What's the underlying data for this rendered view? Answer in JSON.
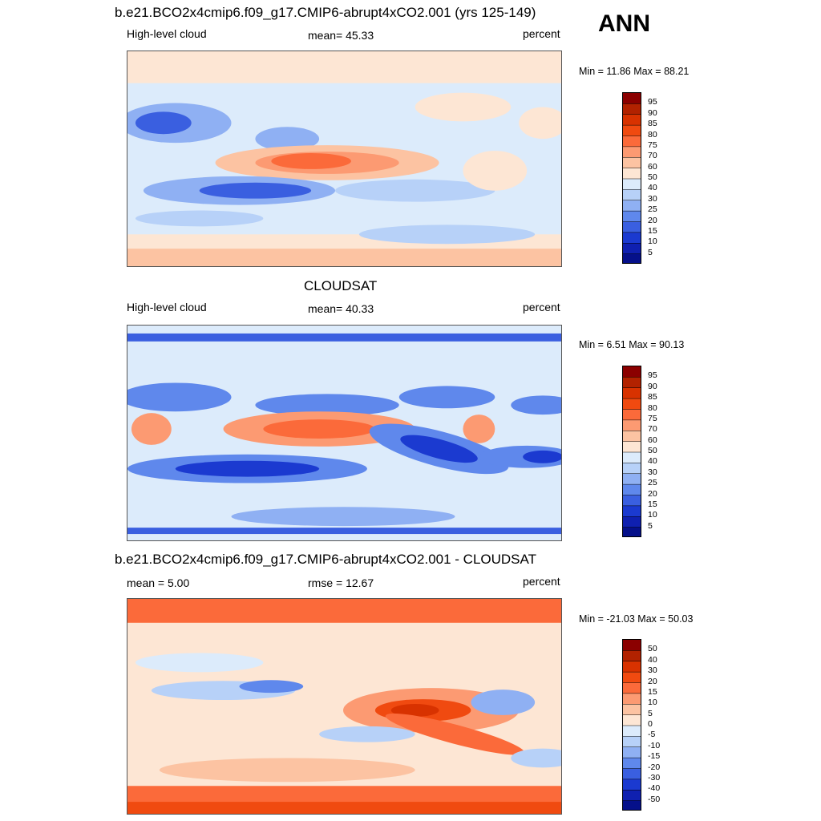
{
  "figure": {
    "season": "ANN"
  },
  "panels": [
    {
      "title": "b.e21.BCO2x4cmip6.f09_g17.CMIP6-abrupt4xCO2.001 (yrs 125-149)",
      "left_label": "High-level cloud",
      "center_label": "mean=  45.33",
      "right_label": "percent",
      "minmax": "Min =  11.86 Max =  88.21",
      "levels": [
        "95",
        "90",
        "85",
        "80",
        "75",
        "70",
        "60",
        "50",
        "40",
        "30",
        "25",
        "20",
        "15",
        "10",
        "5"
      ],
      "colors": [
        "#8b0000",
        "#b22200",
        "#d83200",
        "#f04a10",
        "#fb6a3a",
        "#fc9a72",
        "#fcc3a2",
        "#fde6d4",
        "#dcebfb",
        "#b7d1f8",
        "#8fb0f3",
        "#5f88ec",
        "#3a5fe0",
        "#1b3ad0",
        "#0f20b0",
        "#05108a"
      ]
    },
    {
      "title": "CLOUDSAT",
      "left_label": "High-level cloud",
      "center_label": "mean=  40.33",
      "right_label": "percent",
      "minmax": "Min =   6.51 Max =  90.13",
      "levels": [
        "95",
        "90",
        "85",
        "80",
        "75",
        "70",
        "60",
        "50",
        "40",
        "30",
        "25",
        "20",
        "15",
        "10",
        "5"
      ],
      "colors": [
        "#8b0000",
        "#b22200",
        "#d83200",
        "#f04a10",
        "#fb6a3a",
        "#fc9a72",
        "#fcc3a2",
        "#fde6d4",
        "#dcebfb",
        "#b7d1f8",
        "#8fb0f3",
        "#5f88ec",
        "#3a5fe0",
        "#1b3ad0",
        "#0f20b0",
        "#05108a"
      ]
    },
    {
      "title": "b.e21.BCO2x4cmip6.f09_g17.CMIP6-abrupt4xCO2.001 - CLOUDSAT",
      "left_label": "mean =   5.00",
      "center_label": "rmse =  12.67",
      "right_label": "percent",
      "minmax": "Min = -21.03 Max =  50.03",
      "levels": [
        "50",
        "40",
        "30",
        "20",
        "15",
        "10",
        "5",
        "0",
        "-5",
        "-10",
        "-15",
        "-20",
        "-30",
        "-40",
        "-50"
      ],
      "colors": [
        "#8b0000",
        "#b22200",
        "#d83200",
        "#f04a10",
        "#fb6a3a",
        "#fc9a72",
        "#fcc3a2",
        "#fde6d4",
        "#dcebfb",
        "#b7d1f8",
        "#8fb0f3",
        "#5f88ec",
        "#3a5fe0",
        "#1b3ad0",
        "#0f20b0",
        "#05108a"
      ]
    }
  ],
  "chart_data": [
    {
      "type": "heatmap",
      "title": "b.e21.BCO2x4cmip6.f09_g17.CMIP6-abrupt4xCO2.001 (yrs 125-149)",
      "variable": "High-level cloud",
      "units": "percent",
      "mean": 45.33,
      "min": 11.86,
      "max": 88.21,
      "contour_levels": [
        5,
        10,
        15,
        20,
        25,
        30,
        40,
        50,
        60,
        70,
        75,
        80,
        85,
        90,
        95
      ]
    },
    {
      "type": "heatmap",
      "title": "CLOUDSAT",
      "variable": "High-level cloud",
      "units": "percent",
      "mean": 40.33,
      "min": 6.51,
      "max": 90.13,
      "contour_levels": [
        5,
        10,
        15,
        20,
        25,
        30,
        40,
        50,
        60,
        70,
        75,
        80,
        85,
        90,
        95
      ]
    },
    {
      "type": "heatmap",
      "title": "b.e21.BCO2x4cmip6.f09_g17.CMIP6-abrupt4xCO2.001 - CLOUDSAT",
      "units": "percent",
      "mean": 5.0,
      "rmse": 12.67,
      "min": -21.03,
      "max": 50.03,
      "contour_levels": [
        -50,
        -40,
        -30,
        -20,
        -15,
        -10,
        -5,
        0,
        5,
        10,
        15,
        20,
        30,
        40,
        50
      ]
    }
  ]
}
